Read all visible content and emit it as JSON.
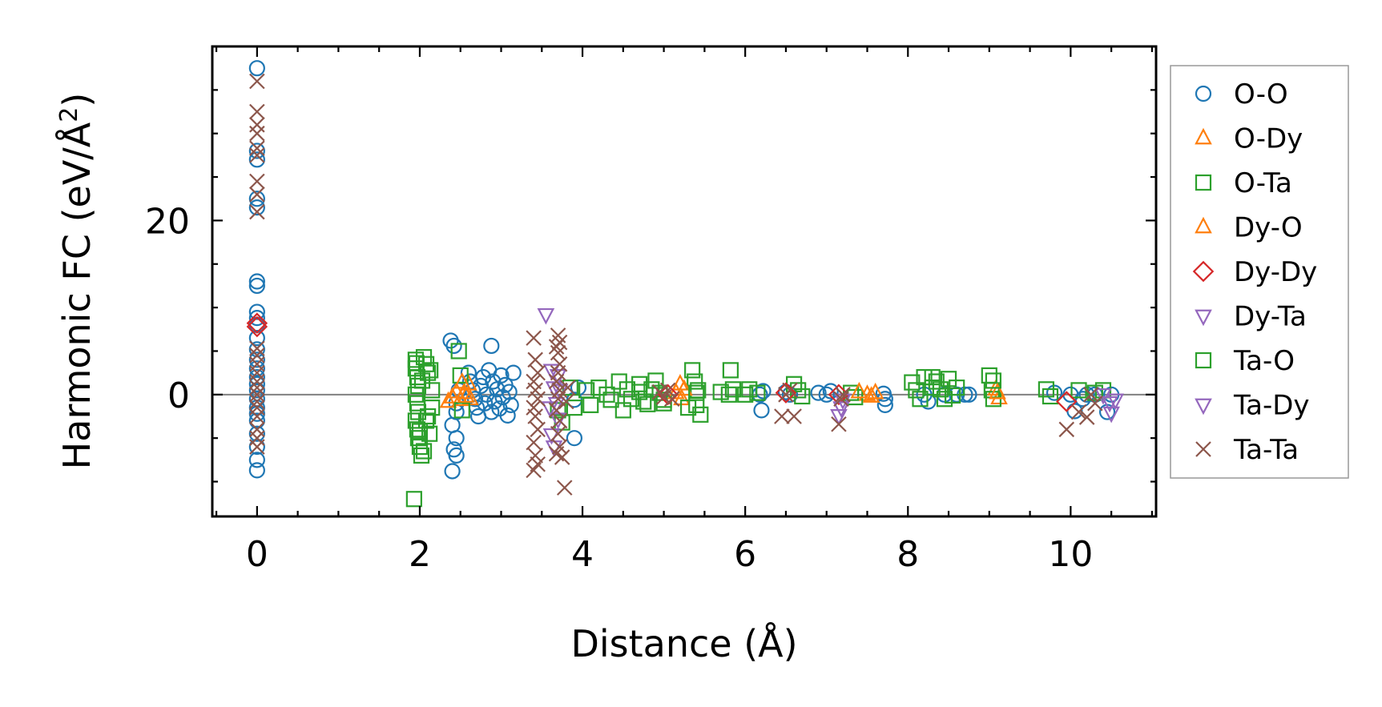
{
  "chart_data": {
    "type": "scatter",
    "title": "",
    "xlabel": "Distance (Å)",
    "ylabel_main": "Harmonic FC (eV/Å",
    "ylabel_sup": "2",
    "ylabel_close": ")",
    "xlim": [
      -0.55,
      11.05
    ],
    "ylim": [
      -14,
      40
    ],
    "xticks": [
      0,
      2,
      4,
      6,
      8,
      10
    ],
    "xtick_labels": [
      "0",
      "2",
      "4",
      "6",
      "8",
      "10"
    ],
    "yticks": [
      0,
      20
    ],
    "ytick_labels": [
      "0",
      "20"
    ],
    "reference_line_y": 0,
    "legend_position": "right",
    "series": [
      {
        "name": "O-O",
        "marker": "circle",
        "color": "#1f77b4",
        "filled": false,
        "points": [
          [
            0,
            37.5
          ],
          [
            0,
            28
          ],
          [
            0,
            27
          ],
          [
            0,
            22.5
          ],
          [
            0,
            21.5
          ],
          [
            0,
            13
          ],
          [
            0,
            12.5
          ],
          [
            0,
            9.5
          ],
          [
            0,
            8.8
          ],
          [
            0,
            8
          ],
          [
            0,
            6.5
          ],
          [
            0,
            5.2
          ],
          [
            0,
            4
          ],
          [
            0,
            3
          ],
          [
            0,
            2
          ],
          [
            0,
            1.2
          ],
          [
            0,
            0.5
          ],
          [
            0,
            -0.5
          ],
          [
            0,
            -1.5
          ],
          [
            0,
            -2.2
          ],
          [
            0,
            -3
          ],
          [
            0,
            -4.5
          ],
          [
            0,
            -6
          ],
          [
            0,
            -7.5
          ],
          [
            0,
            -8.7
          ],
          [
            2.38,
            6.2
          ],
          [
            2.42,
            5.6
          ],
          [
            2.45,
            -2
          ],
          [
            2.4,
            -3.5
          ],
          [
            2.45,
            -5
          ],
          [
            2.42,
            -6.3
          ],
          [
            2.45,
            -7
          ],
          [
            2.4,
            -8.8
          ],
          [
            2.45,
            -1
          ],
          [
            2.48,
            0.5
          ],
          [
            2.6,
            2.5
          ],
          [
            2.62,
            1.5
          ],
          [
            2.65,
            0.5
          ],
          [
            2.68,
            -0.5
          ],
          [
            2.7,
            -1.5
          ],
          [
            2.72,
            -2.5
          ],
          [
            2.75,
            1
          ],
          [
            2.78,
            2
          ],
          [
            2.8,
            -1
          ],
          [
            2.82,
            0
          ],
          [
            2.85,
            2.8
          ],
          [
            2.88,
            -2
          ],
          [
            2.9,
            1.5
          ],
          [
            2.92,
            -0.8
          ],
          [
            2.95,
            0.6
          ],
          [
            2.98,
            -1.6
          ],
          [
            3.0,
            2.2
          ],
          [
            3.02,
            -0.3
          ],
          [
            3.05,
            1.1
          ],
          [
            3.08,
            -2.4
          ],
          [
            3.1,
            0.3
          ],
          [
            3.12,
            -1.2
          ],
          [
            3.15,
            2.5
          ],
          [
            2.88,
            5.6
          ],
          [
            3.9,
            -5
          ],
          [
            3.95,
            0.8
          ],
          [
            3.9,
            -0.6
          ],
          [
            6.2,
            -1.8
          ],
          [
            6.18,
            0
          ],
          [
            6.22,
            0.4
          ],
          [
            6.5,
            0.3
          ],
          [
            6.55,
            0
          ],
          [
            6.9,
            0.2
          ],
          [
            7.0,
            0
          ],
          [
            7.05,
            0.4
          ],
          [
            7.7,
            0.1
          ],
          [
            7.72,
            -0.5
          ],
          [
            7.72,
            -1.2
          ],
          [
            8.2,
            0
          ],
          [
            8.25,
            -0.8
          ],
          [
            8.45,
            0
          ],
          [
            8.6,
            0
          ],
          [
            8.7,
            0
          ],
          [
            8.75,
            0
          ],
          [
            9.8,
            0.2
          ],
          [
            10.0,
            0
          ],
          [
            10.05,
            -1.9
          ],
          [
            10.15,
            -0.5
          ],
          [
            10.2,
            0
          ],
          [
            10.3,
            0
          ],
          [
            10.45,
            -2
          ],
          [
            10.5,
            0
          ]
        ]
      },
      {
        "name": "O-Dy",
        "marker": "triangle-up",
        "color": "#ff7f0e",
        "filled": false,
        "points": [
          [
            2.35,
            -0.8
          ],
          [
            2.4,
            -0.3
          ],
          [
            2.45,
            0.3
          ],
          [
            2.5,
            -0.6
          ],
          [
            2.55,
            0.2
          ],
          [
            2.6,
            1.2
          ],
          [
            2.62,
            -0.5
          ],
          [
            5.2,
            1.2
          ],
          [
            5.22,
            -0.5
          ],
          [
            7.5,
            0
          ],
          [
            7.6,
            0.2
          ],
          [
            9.08,
            0.6
          ],
          [
            9.12,
            -0.4
          ]
        ]
      },
      {
        "name": "O-Ta",
        "marker": "square",
        "color": "#2ca02c",
        "filled": false,
        "points": [
          [
            1.95,
            4
          ],
          [
            1.95,
            3
          ],
          [
            1.97,
            2
          ],
          [
            1.98,
            1
          ],
          [
            1.95,
            0
          ],
          [
            1.97,
            -1
          ],
          [
            1.98,
            -2
          ],
          [
            1.95,
            -3
          ],
          [
            1.97,
            -4
          ],
          [
            1.98,
            -5
          ],
          [
            2.0,
            -6
          ],
          [
            2.02,
            -7
          ],
          [
            2.05,
            -6.5
          ],
          [
            2.05,
            4.3
          ],
          [
            2.08,
            3.5
          ],
          [
            2.1,
            2.5
          ],
          [
            2.1,
            -2.5
          ],
          [
            2.12,
            -4.5
          ],
          [
            2.15,
            0.5
          ],
          [
            2.15,
            -1.5
          ],
          [
            1.93,
            -12
          ],
          [
            2.48,
            5
          ],
          [
            2.5,
            2.2
          ],
          [
            2.52,
            -1.8
          ],
          [
            3.7,
            -1.8
          ],
          [
            3.75,
            -3.2
          ],
          [
            3.85,
            0.8
          ],
          [
            3.9,
            -1.5
          ],
          [
            4.05,
            0.5
          ],
          [
            4.1,
            -1.2
          ],
          [
            4.2,
            0.8
          ],
          [
            4.3,
            0
          ],
          [
            4.35,
            -0.6
          ],
          [
            4.45,
            1.5
          ],
          [
            4.5,
            -1.8
          ],
          [
            4.55,
            0.6
          ],
          [
            4.6,
            -0.5
          ],
          [
            4.7,
            0.3
          ],
          [
            4.75,
            -0.8
          ],
          [
            4.85,
            0.6
          ],
          [
            4.95,
            0.2
          ],
          [
            5.0,
            -0.6
          ],
          [
            4.7,
            1.2
          ],
          [
            4.8,
            -1.1
          ],
          [
            4.9,
            1.6
          ],
          [
            5.0,
            -1
          ],
          [
            5.35,
            2.8
          ],
          [
            5.38,
            1.5
          ],
          [
            5.4,
            -1.2
          ],
          [
            5.42,
            0.5
          ],
          [
            5.45,
            -2.3
          ],
          [
            5.7,
            0.3
          ],
          [
            5.8,
            0
          ],
          [
            5.82,
            2.8
          ],
          [
            5.85,
            0.6
          ],
          [
            6.0,
            0
          ],
          [
            6.05,
            0.6
          ],
          [
            6.15,
            0.2
          ],
          [
            6.6,
            1.2
          ],
          [
            6.65,
            0.5
          ],
          [
            6.7,
            -0.2
          ],
          [
            7.3,
            0.2
          ],
          [
            7.35,
            -0.3
          ],
          [
            8.05,
            1.4
          ],
          [
            8.1,
            0.5
          ],
          [
            8.15,
            -0.5
          ],
          [
            8.3,
            2
          ],
          [
            8.35,
            1.5
          ],
          [
            8.4,
            0.6
          ],
          [
            8.45,
            -0.5
          ],
          [
            8.5,
            1.8
          ],
          [
            8.55,
            -0.1
          ],
          [
            8.6,
            0.8
          ],
          [
            9.0,
            2.2
          ],
          [
            9.03,
            0.5
          ],
          [
            9.05,
            -0.5
          ],
          [
            9.7,
            0.6
          ],
          [
            9.75,
            -0.2
          ],
          [
            10.1,
            0.5
          ],
          [
            10.3,
            0.2
          ],
          [
            10.4,
            0.5
          ]
        ]
      },
      {
        "name": "Dy-O",
        "marker": "triangle-up",
        "color": "#ff7f0e",
        "filled": false,
        "points": [
          [
            2.52,
            1.4
          ],
          [
            2.57,
            -0.2
          ],
          [
            5.15,
            0.2
          ],
          [
            5.25,
            0.6
          ],
          [
            7.4,
            0.3
          ],
          [
            7.55,
            -0.2
          ],
          [
            9.1,
            0.2
          ]
        ]
      },
      {
        "name": "Dy-Dy",
        "marker": "diamond",
        "color": "#d62728",
        "filled": false,
        "points": [
          [
            0,
            8.2
          ],
          [
            0,
            7.8
          ],
          [
            5.05,
            0
          ],
          [
            6.5,
            0.2
          ],
          [
            7.15,
            0
          ],
          [
            9.95,
            -0.8
          ]
        ]
      },
      {
        "name": "Dy-Ta",
        "marker": "triangle-down",
        "color": "#9467bd",
        "filled": false,
        "points": [
          [
            3.55,
            9.2
          ],
          [
            3.62,
            2.8
          ],
          [
            3.65,
            0.8
          ],
          [
            3.6,
            -1.5
          ],
          [
            3.62,
            -4.6
          ],
          [
            3.65,
            -6
          ],
          [
            3.7,
            -2.8
          ],
          [
            3.7,
            2.2
          ],
          [
            7.15,
            -2.4
          ],
          [
            7.2,
            -0.6
          ],
          [
            10.4,
            0
          ],
          [
            10.5,
            -2.1
          ],
          [
            10.55,
            -0.6
          ]
        ]
      },
      {
        "name": "Ta-O",
        "marker": "square",
        "color": "#2ca02c",
        "filled": false,
        "points": [
          [
            1.96,
            3.6
          ],
          [
            2.0,
            -4.2
          ],
          [
            2.03,
            1.6
          ],
          [
            2.08,
            -3
          ],
          [
            2.13,
            2.8
          ],
          [
            5.3,
            -1.5
          ],
          [
            5.4,
            0.2
          ],
          [
            8.2,
            2
          ],
          [
            8.3,
            0.8
          ],
          [
            9.05,
            1.6
          ]
        ]
      },
      {
        "name": "Ta-Dy",
        "marker": "triangle-down",
        "color": "#9467bd",
        "filled": false,
        "points": [
          [
            3.68,
            -1
          ],
          [
            3.72,
            0.5
          ],
          [
            7.18,
            -1.5
          ],
          [
            10.48,
            -0.9
          ]
        ]
      },
      {
        "name": "Ta-Ta",
        "marker": "x",
        "color": "#8c564b",
        "filled": false,
        "points": [
          [
            0,
            36
          ],
          [
            0,
            32.5
          ],
          [
            0,
            31
          ],
          [
            0,
            30
          ],
          [
            0,
            28.3
          ],
          [
            0,
            27.5
          ],
          [
            0,
            24.5
          ],
          [
            0,
            23
          ],
          [
            0,
            21
          ],
          [
            0,
            5.3
          ],
          [
            0,
            4.5
          ],
          [
            0,
            3.5
          ],
          [
            0,
            2.5
          ],
          [
            0,
            1.5
          ],
          [
            0,
            0.8
          ],
          [
            0,
            0
          ],
          [
            0,
            -0.8
          ],
          [
            0,
            -1.5
          ],
          [
            0,
            -2.5
          ],
          [
            0,
            -4
          ],
          [
            0,
            -5
          ],
          [
            0,
            -6
          ],
          [
            3.4,
            6.5
          ],
          [
            3.42,
            4
          ],
          [
            3.45,
            2.5
          ],
          [
            3.4,
            1.5
          ],
          [
            3.42,
            0.5
          ],
          [
            3.45,
            -0.5
          ],
          [
            3.4,
            -1.5
          ],
          [
            3.42,
            -2.5
          ],
          [
            3.45,
            -4
          ],
          [
            3.4,
            -5.5
          ],
          [
            3.42,
            -7
          ],
          [
            3.45,
            -8
          ],
          [
            3.4,
            -8.7
          ],
          [
            3.7,
            6.8
          ],
          [
            3.72,
            6
          ],
          [
            3.68,
            5.5
          ],
          [
            3.7,
            4.8
          ],
          [
            3.72,
            3.5
          ],
          [
            3.7,
            2.5
          ],
          [
            3.68,
            1.5
          ],
          [
            3.72,
            0.5
          ],
          [
            3.7,
            -0.5
          ],
          [
            3.68,
            -1.8
          ],
          [
            3.72,
            -3
          ],
          [
            3.7,
            -4.5
          ],
          [
            3.72,
            -6
          ],
          [
            3.68,
            -6.8
          ],
          [
            3.75,
            -7.2
          ],
          [
            3.78,
            -10.7
          ],
          [
            3.8,
            -0.8
          ],
          [
            3.82,
            0.8
          ],
          [
            4.95,
            0.3
          ],
          [
            5.0,
            -0.3
          ],
          [
            5.05,
            0.5
          ],
          [
            5.1,
            -0.5
          ],
          [
            6.45,
            -2.5
          ],
          [
            6.5,
            0
          ],
          [
            6.55,
            0.5
          ],
          [
            6.6,
            -2.5
          ],
          [
            7.15,
            -3.4
          ],
          [
            7.18,
            -0.5
          ],
          [
            7.2,
            0
          ],
          [
            9.95,
            -4
          ],
          [
            10.1,
            -2
          ],
          [
            10.2,
            -2.6
          ],
          [
            10.25,
            0
          ],
          [
            10.3,
            -1
          ]
        ]
      }
    ]
  },
  "legend": {
    "items": [
      {
        "label": "O-O",
        "marker": "circle",
        "color": "#1f77b4"
      },
      {
        "label": "O-Dy",
        "marker": "triangle-up",
        "color": "#ff7f0e"
      },
      {
        "label": "O-Ta",
        "marker": "square",
        "color": "#2ca02c"
      },
      {
        "label": "Dy-O",
        "marker": "triangle-up",
        "color": "#ff7f0e"
      },
      {
        "label": "Dy-Dy",
        "marker": "diamond",
        "color": "#d62728"
      },
      {
        "label": "Dy-Ta",
        "marker": "triangle-down",
        "color": "#9467bd"
      },
      {
        "label": "Ta-O",
        "marker": "square",
        "color": "#2ca02c"
      },
      {
        "label": "Ta-Dy",
        "marker": "triangle-down",
        "color": "#9467bd"
      },
      {
        "label": "Ta-Ta",
        "marker": "x",
        "color": "#8c564b"
      }
    ]
  }
}
